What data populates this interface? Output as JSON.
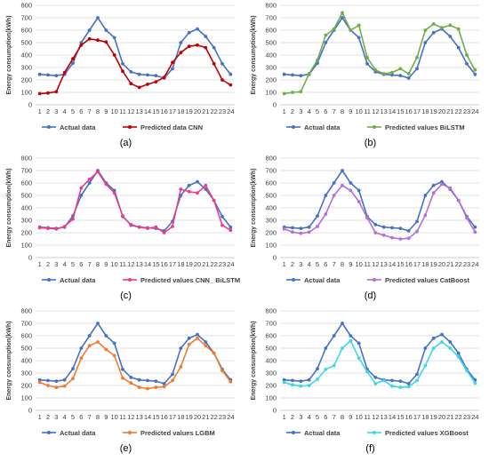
{
  "figure": {
    "background": "#ffffff"
  },
  "panel_labels": [
    "(a)",
    "(b)",
    "(c)",
    "(d)",
    "(e)",
    "(f)"
  ],
  "chart_data": [
    {
      "type": "line",
      "panel": "(a)",
      "ylabel": "Energy consumption(kWh)",
      "ylim": [
        0,
        800
      ],
      "yticks": [
        0,
        100,
        200,
        300,
        400,
        500,
        600,
        700,
        800
      ],
      "grid": true,
      "legend_position": "bottom",
      "categories": [
        "1",
        "2",
        "3",
        "4",
        "5",
        "6",
        "7",
        "8",
        "9",
        "10",
        "11",
        "12",
        "13",
        "14",
        "15",
        "16",
        "17",
        "18",
        "19",
        "20",
        "21",
        "22",
        "23",
        "24"
      ],
      "series": [
        {
          "name": "Actual data",
          "color": "#4472c4",
          "marker": "circle",
          "values": [
            245,
            240,
            235,
            245,
            335,
            500,
            600,
            700,
            600,
            540,
            330,
            265,
            245,
            240,
            235,
            215,
            290,
            500,
            580,
            610,
            550,
            460,
            330,
            245
          ]
        },
        {
          "name": "Predicted data CNN",
          "color": "#c00000",
          "marker": "circle",
          "values": [
            90,
            95,
            105,
            260,
            370,
            480,
            530,
            520,
            505,
            400,
            270,
            170,
            140,
            165,
            185,
            220,
            340,
            420,
            470,
            480,
            460,
            330,
            200,
            160
          ]
        }
      ]
    },
    {
      "type": "line",
      "panel": "(b)",
      "ylabel": "Energy consumption(kWh)",
      "ylim": [
        0,
        800
      ],
      "yticks": [
        0,
        100,
        200,
        300,
        400,
        500,
        600,
        700,
        800
      ],
      "grid": true,
      "legend_position": "bottom",
      "categories": [
        "1",
        "2",
        "3",
        "4",
        "5",
        "6",
        "7",
        "8",
        "9",
        "10",
        "11",
        "12",
        "13",
        "14",
        "15",
        "16",
        "17",
        "18",
        "19",
        "20",
        "21",
        "22",
        "23",
        "24"
      ],
      "series": [
        {
          "name": "Actual data",
          "color": "#4472c4",
          "marker": "circle",
          "values": [
            245,
            240,
            235,
            245,
            335,
            500,
            600,
            700,
            600,
            540,
            330,
            265,
            245,
            240,
            235,
            215,
            290,
            500,
            580,
            610,
            550,
            460,
            330,
            245
          ]
        },
        {
          "name": "Predicted values BiLSTM",
          "color": "#70ad47",
          "marker": "circle",
          "values": [
            90,
            100,
            105,
            250,
            360,
            560,
            610,
            740,
            600,
            640,
            380,
            280,
            250,
            260,
            290,
            250,
            380,
            600,
            650,
            620,
            640,
            610,
            400,
            280
          ]
        }
      ]
    },
    {
      "type": "line",
      "panel": "(c)",
      "ylabel": "Energy consumption(kWh)",
      "ylim": [
        0,
        800
      ],
      "yticks": [
        0,
        100,
        200,
        300,
        400,
        500,
        600,
        700,
        800
      ],
      "grid": true,
      "legend_position": "bottom",
      "categories": [
        "1",
        "2",
        "3",
        "4",
        "5",
        "6",
        "7",
        "8",
        "9",
        "10",
        "11",
        "12",
        "13",
        "14",
        "15",
        "16",
        "17",
        "18",
        "19",
        "20",
        "21",
        "22",
        "23",
        "24"
      ],
      "series": [
        {
          "name": "Actual data",
          "color": "#4472c4",
          "marker": "circle",
          "values": [
            245,
            240,
            235,
            245,
            335,
            500,
            600,
            700,
            600,
            540,
            330,
            265,
            245,
            240,
            235,
            215,
            290,
            500,
            580,
            610,
            550,
            460,
            330,
            245
          ]
        },
        {
          "name": "Predicted values CNN_ BiLSTM",
          "color": "#e83e8c",
          "marker": "circle",
          "values": [
            240,
            235,
            230,
            250,
            310,
            560,
            630,
            690,
            590,
            520,
            335,
            260,
            245,
            235,
            245,
            200,
            250,
            550,
            530,
            520,
            580,
            460,
            260,
            220
          ]
        }
      ]
    },
    {
      "type": "line",
      "panel": "(d)",
      "ylabel": "Energy consumption(kWh)",
      "ylim": [
        0,
        800
      ],
      "yticks": [
        0,
        100,
        200,
        300,
        400,
        500,
        600,
        700,
        800
      ],
      "grid": true,
      "legend_position": "bottom",
      "categories": [
        "1",
        "2",
        "3",
        "4",
        "5",
        "6",
        "7",
        "8",
        "9",
        "10",
        "11",
        "12",
        "13",
        "14",
        "15",
        "16",
        "17",
        "18",
        "19",
        "20",
        "21",
        "22",
        "23",
        "24"
      ],
      "series": [
        {
          "name": "Actual data",
          "color": "#4472c4",
          "marker": "circle",
          "values": [
            245,
            240,
            235,
            245,
            335,
            500,
            600,
            700,
            600,
            540,
            330,
            265,
            245,
            240,
            235,
            215,
            290,
            500,
            580,
            610,
            550,
            460,
            330,
            245
          ]
        },
        {
          "name": "Predicted values CatBoost",
          "color": "#b56fd6",
          "marker": "circle",
          "values": [
            230,
            205,
            195,
            205,
            250,
            350,
            500,
            580,
            540,
            450,
            320,
            200,
            180,
            160,
            150,
            155,
            210,
            340,
            520,
            590,
            560,
            460,
            320,
            205
          ]
        }
      ]
    },
    {
      "type": "line",
      "panel": "(e)",
      "ylabel": "Energy consumption(kWh)",
      "ylim": [
        0,
        800
      ],
      "yticks": [
        0,
        100,
        200,
        300,
        400,
        500,
        600,
        700,
        800
      ],
      "grid": true,
      "legend_position": "bottom",
      "categories": [
        "1",
        "2",
        "3",
        "4",
        "5",
        "6",
        "7",
        "8",
        "9",
        "10",
        "11",
        "12",
        "13",
        "14",
        "15",
        "16",
        "17",
        "18",
        "19",
        "20",
        "21",
        "22",
        "23",
        "24"
      ],
      "series": [
        {
          "name": "Actual data",
          "color": "#4472c4",
          "marker": "circle",
          "values": [
            245,
            240,
            235,
            245,
            335,
            500,
            600,
            700,
            600,
            540,
            330,
            265,
            245,
            240,
            235,
            215,
            290,
            500,
            580,
            610,
            550,
            460,
            330,
            245
          ]
        },
        {
          "name": "Predicted values LGBM",
          "color": "#ed7d31",
          "marker": "circle",
          "values": [
            225,
            200,
            185,
            195,
            255,
            420,
            520,
            550,
            490,
            440,
            260,
            220,
            185,
            175,
            185,
            190,
            240,
            350,
            530,
            580,
            520,
            460,
            320,
            230
          ]
        }
      ]
    },
    {
      "type": "line",
      "panel": "(f)",
      "ylabel": "Energy consumption(kWh)",
      "ylim": [
        0,
        800
      ],
      "yticks": [
        0,
        100,
        200,
        300,
        400,
        500,
        600,
        700,
        800
      ],
      "grid": true,
      "legend_position": "bottom",
      "categories": [
        "1",
        "2",
        "3",
        "4",
        "5",
        "6",
        "7",
        "8",
        "9",
        "10",
        "11",
        "12",
        "13",
        "14",
        "15",
        "16",
        "17",
        "18",
        "19",
        "20",
        "21",
        "22",
        "23",
        "24"
      ],
      "series": [
        {
          "name": "Actual data",
          "color": "#4472c4",
          "marker": "circle",
          "values": [
            245,
            240,
            235,
            245,
            335,
            500,
            600,
            700,
            600,
            540,
            330,
            265,
            245,
            240,
            235,
            215,
            290,
            500,
            580,
            610,
            550,
            460,
            330,
            245
          ]
        },
        {
          "name": "Predicted values XGBoost",
          "color": "#3ed7e6",
          "marker": "circle",
          "values": [
            225,
            205,
            195,
            200,
            250,
            330,
            360,
            500,
            560,
            420,
            310,
            215,
            240,
            195,
            185,
            190,
            240,
            360,
            500,
            550,
            500,
            430,
            320,
            220
          ]
        }
      ]
    }
  ]
}
